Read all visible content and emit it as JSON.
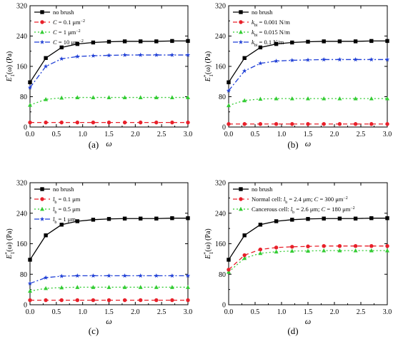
{
  "chart_data": [
    {
      "panel_label": "(a)",
      "type": "line",
      "xlabel": "ω",
      "ylabel_parts": {
        "main": "E",
        "sup": "*",
        "sub": "1",
        "rest": "(ω) (Pa)"
      },
      "xlim": [
        0,
        3.0
      ],
      "ylim": [
        0,
        320
      ],
      "xticks": [
        "0.0",
        "0.5",
        "1.0",
        "1.5",
        "2.0",
        "2.5",
        "3.0"
      ],
      "yticks": [
        "0",
        "80",
        "160",
        "240",
        "320"
      ],
      "x": [
        0,
        0.3,
        0.6,
        0.9,
        1.2,
        1.5,
        1.8,
        2.1,
        2.4,
        2.7,
        3.0
      ],
      "series": [
        {
          "name": "no brush",
          "legend_parts": [
            [
              "",
              "no brush"
            ]
          ],
          "color": "#000000",
          "marker": "square",
          "dash": "",
          "values": [
            118,
            182,
            210,
            219,
            223,
            225,
            226,
            226,
            226,
            227,
            227
          ]
        },
        {
          "name": "C = 0.1 μm⁻²",
          "legend_parts": [
            [
              "i",
              "C"
            ],
            [
              "",
              " = 0.1 μm"
            ],
            [
              "sup",
              "−2"
            ]
          ],
          "color": "#e8202a",
          "marker": "circle",
          "dash": "6,4",
          "values": [
            12,
            12,
            12,
            12,
            12,
            12,
            12,
            12,
            12,
            12,
            12
          ]
        },
        {
          "name": "C = 1 μm⁻²",
          "legend_parts": [
            [
              "i",
              "C"
            ],
            [
              "",
              " = 1 μm"
            ],
            [
              "sup",
              "−2"
            ]
          ],
          "color": "#33cc33",
          "marker": "triangle",
          "dash": "2,3",
          "values": [
            58,
            73,
            77,
            78,
            78,
            78,
            78,
            78,
            78,
            78,
            78
          ]
        },
        {
          "name": "C = 10 μm⁻²",
          "legend_parts": [
            [
              "i",
              "C"
            ],
            [
              "",
              " = 10 μm"
            ],
            [
              "sup",
              "−2"
            ]
          ],
          "color": "#1f3fd6",
          "marker": "star",
          "dash": "7,3,2,3",
          "values": [
            104,
            160,
            180,
            186,
            188,
            189,
            190,
            190,
            190,
            190,
            190
          ]
        }
      ]
    },
    {
      "panel_label": "(b)",
      "type": "line",
      "xlabel": "ω",
      "ylabel_parts": {
        "main": "E",
        "sup": "*",
        "sub": "1",
        "rest": "(ω) (Pa)"
      },
      "xlim": [
        0,
        3.0
      ],
      "ylim": [
        0,
        320
      ],
      "xticks": [
        "0.0",
        "0.5",
        "1.0",
        "1.5",
        "2.0",
        "2.5",
        "3.0"
      ],
      "yticks": [
        "0",
        "80",
        "160",
        "240",
        "320"
      ],
      "x": [
        0,
        0.3,
        0.6,
        0.9,
        1.2,
        1.5,
        1.8,
        2.1,
        2.4,
        2.7,
        3.0
      ],
      "series": [
        {
          "name": "no brush",
          "legend_parts": [
            [
              "",
              "no brush"
            ]
          ],
          "color": "#000000",
          "marker": "square",
          "dash": "",
          "values": [
            118,
            182,
            210,
            219,
            223,
            225,
            226,
            226,
            226,
            227,
            227
          ]
        },
        {
          "name": "kbi = 0.001 N/m",
          "legend_parts": [
            [
              "i",
              "k"
            ],
            [
              "sub",
              "bi"
            ],
            [
              "",
              " = 0.001 N/m"
            ]
          ],
          "color": "#e8202a",
          "marker": "circle",
          "dash": "6,4",
          "values": [
            8,
            8,
            8,
            8,
            8,
            8,
            8,
            8,
            8,
            8,
            8
          ]
        },
        {
          "name": "kbi = 0.015 N/m",
          "legend_parts": [
            [
              "i",
              "k"
            ],
            [
              "sub",
              "bi"
            ],
            [
              "",
              " = 0.015 N/m"
            ]
          ],
          "color": "#33cc33",
          "marker": "triangle",
          "dash": "2,3",
          "values": [
            57,
            70,
            74,
            75,
            75,
            75,
            75,
            75,
            75,
            75,
            75
          ]
        },
        {
          "name": "kbi = 0.1 N/m",
          "legend_parts": [
            [
              "i",
              "k"
            ],
            [
              "sub",
              "bi"
            ],
            [
              "",
              " = 0.1 N/m"
            ]
          ],
          "color": "#1f3fd6",
          "marker": "star",
          "dash": "7,3,2,3",
          "values": [
            96,
            148,
            168,
            174,
            176,
            177,
            178,
            178,
            178,
            178,
            178
          ]
        }
      ]
    },
    {
      "panel_label": "(c)",
      "type": "line",
      "xlabel": "ω",
      "ylabel_parts": {
        "main": "E",
        "sup": "*",
        "sub": "1",
        "rest": "(ω) (Pa)"
      },
      "xlim": [
        0,
        3.0
      ],
      "ylim": [
        0,
        320
      ],
      "xticks": [
        "0.0",
        "0.5",
        "1.0",
        "1.5",
        "2.0",
        "2.5",
        "3.0"
      ],
      "yticks": [
        "0",
        "80",
        "160",
        "240",
        "320"
      ],
      "x": [
        0,
        0.3,
        0.6,
        0.9,
        1.2,
        1.5,
        1.8,
        2.1,
        2.4,
        2.7,
        3.0
      ],
      "series": [
        {
          "name": "no brush",
          "legend_parts": [
            [
              "",
              "no brush"
            ]
          ],
          "color": "#000000",
          "marker": "square",
          "dash": "",
          "values": [
            118,
            182,
            210,
            219,
            223,
            225,
            226,
            226,
            226,
            227,
            227
          ]
        },
        {
          "name": "lb = 0.1 μm",
          "legend_parts": [
            [
              "i",
              "l"
            ],
            [
              "sub",
              "b"
            ],
            [
              "",
              " = 0.1 μm"
            ]
          ],
          "color": "#e8202a",
          "marker": "circle",
          "dash": "6,4",
          "values": [
            12,
            12,
            12,
            12,
            12,
            12,
            12,
            12,
            12,
            12,
            12
          ]
        },
        {
          "name": "lb = 0.5 μm",
          "legend_parts": [
            [
              "i",
              "l"
            ],
            [
              "sub",
              "b"
            ],
            [
              "",
              " = 0.5 μm"
            ]
          ],
          "color": "#33cc33",
          "marker": "triangle",
          "dash": "2,3",
          "values": [
            36,
            43,
            45,
            46,
            46,
            46,
            46,
            46,
            46,
            46,
            46
          ]
        },
        {
          "name": "lb = 1 μm",
          "legend_parts": [
            [
              "i",
              "l"
            ],
            [
              "sub",
              "b"
            ],
            [
              "",
              " = 1 μm"
            ]
          ],
          "color": "#1f3fd6",
          "marker": "star",
          "dash": "7,3,2,3",
          "values": [
            56,
            71,
            75,
            76,
            76,
            76,
            76,
            76,
            76,
            76,
            76
          ]
        }
      ]
    },
    {
      "panel_label": "(d)",
      "type": "line",
      "xlabel": "ω",
      "ylabel_parts": {
        "main": "E",
        "sup": "*",
        "sub": "1",
        "rest": "(ω) (Pa)"
      },
      "xlim": [
        0,
        3.0
      ],
      "ylim": [
        0,
        320
      ],
      "xticks": [
        "0.0",
        "0.5",
        "1.0",
        "1.5",
        "2.0",
        "2.5",
        "3.0"
      ],
      "yticks": [
        "0",
        "80",
        "160",
        "240",
        "320"
      ],
      "x": [
        0,
        0.3,
        0.6,
        0.9,
        1.2,
        1.5,
        1.8,
        2.1,
        2.4,
        2.7,
        3.0
      ],
      "series": [
        {
          "name": "no brush",
          "legend_parts": [
            [
              "",
              "no brush"
            ]
          ],
          "color": "#000000",
          "marker": "square",
          "dash": "",
          "values": [
            118,
            182,
            210,
            219,
            223,
            225,
            226,
            226,
            226,
            227,
            227
          ]
        },
        {
          "name": "Normal cell: lb = 2.4 μm; C = 300 μm⁻²",
          "legend_parts": [
            [
              "",
              "Normal cell: "
            ],
            [
              "i",
              "l"
            ],
            [
              "sub",
              "b"
            ],
            [
              "",
              " = 2.4 μm; "
            ],
            [
              "i",
              "C"
            ],
            [
              "",
              " = 300 μm"
            ],
            [
              "sup",
              "−2"
            ]
          ],
          "color": "#e8202a",
          "marker": "circle",
          "dash": "6,4",
          "values": [
            92,
            130,
            145,
            150,
            152,
            153,
            154,
            154,
            154,
            154,
            154
          ]
        },
        {
          "name": "Cancerous cell: lb = 2.6 μm; C = 180 μm⁻²",
          "legend_parts": [
            [
              "",
              "Cancerous cell: "
            ],
            [
              "i",
              "l"
            ],
            [
              "sub",
              "b"
            ],
            [
              "",
              " = 2.6 μm; "
            ],
            [
              "i",
              "C"
            ],
            [
              "",
              " = 180 μm"
            ],
            [
              "sup",
              "−2"
            ]
          ],
          "color": "#33cc33",
          "marker": "triangle",
          "dash": "2,3",
          "values": [
            86,
            122,
            135,
            139,
            141,
            141,
            142,
            142,
            142,
            142,
            142
          ]
        }
      ]
    }
  ]
}
